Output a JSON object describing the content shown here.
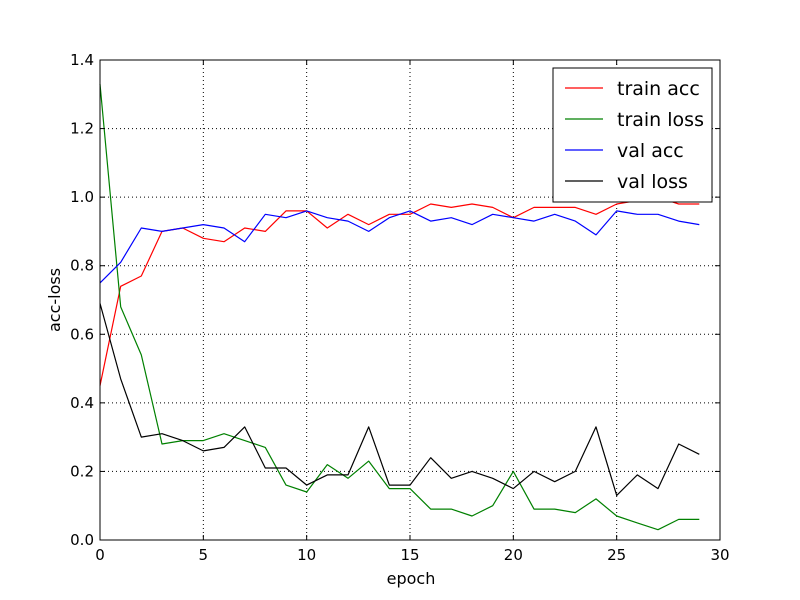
{
  "chart_data": {
    "type": "line",
    "xlabel": "epoch",
    "ylabel": "acc-loss",
    "xlim": [
      0,
      30
    ],
    "ylim": [
      0,
      1.4
    ],
    "grid": true,
    "grid_style": "dotted",
    "legend_position": "upper-right",
    "x_ticks": [
      0,
      5,
      10,
      15,
      20,
      25,
      30
    ],
    "x_tick_labels": [
      "0",
      "5",
      "10",
      "15",
      "20",
      "25",
      "30"
    ],
    "y_ticks": [
      0,
      0.2,
      0.4,
      0.6,
      0.8,
      1.0,
      1.2,
      1.4
    ],
    "y_tick_labels": [
      "0.0",
      "0.2",
      "0.4",
      "0.6",
      "0.8",
      "1.0",
      "1.2",
      "1.4"
    ],
    "x": [
      0,
      1,
      2,
      3,
      4,
      5,
      6,
      7,
      8,
      9,
      10,
      11,
      12,
      13,
      14,
      15,
      16,
      17,
      18,
      19,
      20,
      21,
      22,
      23,
      24,
      25,
      26,
      27,
      28,
      29
    ],
    "series": [
      {
        "name": "train acc",
        "color": "#ff0000",
        "values": [
          0.45,
          0.74,
          0.77,
          0.9,
          0.91,
          0.88,
          0.87,
          0.91,
          0.9,
          0.96,
          0.96,
          0.91,
          0.95,
          0.92,
          0.95,
          0.95,
          0.98,
          0.97,
          0.98,
          0.97,
          0.94,
          0.97,
          0.97,
          0.97,
          0.95,
          0.98,
          0.99,
          1.0,
          0.98,
          0.98
        ]
      },
      {
        "name": "train loss",
        "color": "#008000",
        "values": [
          1.33,
          0.68,
          0.54,
          0.28,
          0.29,
          0.29,
          0.31,
          0.29,
          0.27,
          0.16,
          0.14,
          0.22,
          0.18,
          0.23,
          0.15,
          0.15,
          0.09,
          0.09,
          0.07,
          0.1,
          0.2,
          0.09,
          0.09,
          0.08,
          0.12,
          0.07,
          0.05,
          0.03,
          0.06,
          0.06
        ]
      },
      {
        "name": "val acc",
        "color": "#0000ff",
        "values": [
          0.75,
          0.81,
          0.91,
          0.9,
          0.91,
          0.92,
          0.91,
          0.87,
          0.95,
          0.94,
          0.96,
          0.94,
          0.93,
          0.9,
          0.94,
          0.96,
          0.93,
          0.94,
          0.92,
          0.95,
          0.94,
          0.93,
          0.95,
          0.93,
          0.89,
          0.96,
          0.95,
          0.95,
          0.93,
          0.92
        ]
      },
      {
        "name": "val loss",
        "color": "#000000",
        "values": [
          0.69,
          0.47,
          0.3,
          0.31,
          0.29,
          0.26,
          0.27,
          0.33,
          0.21,
          0.21,
          0.16,
          0.19,
          0.19,
          0.33,
          0.16,
          0.16,
          0.24,
          0.18,
          0.2,
          0.18,
          0.15,
          0.2,
          0.17,
          0.2,
          0.33,
          0.13,
          0.19,
          0.15,
          0.28,
          0.25
        ]
      }
    ]
  }
}
